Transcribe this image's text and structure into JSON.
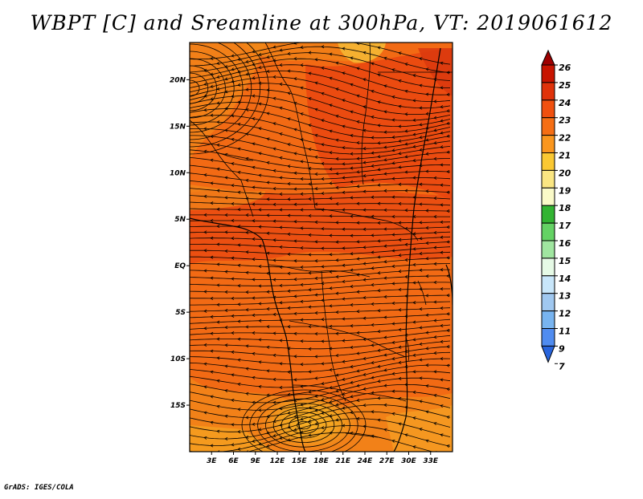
{
  "title": "WBPT [C] and Sreamline at 300hPa, VT: 2019061612",
  "credit": "GrADS: IGES/COLA",
  "map": {
    "lon_range": [
      0,
      36
    ],
    "lat_range": [
      -20,
      24
    ],
    "lat_ticks": [
      {
        "value": 20,
        "label": "20N"
      },
      {
        "value": 15,
        "label": "15N"
      },
      {
        "value": 10,
        "label": "10N"
      },
      {
        "value": 5,
        "label": "5N"
      },
      {
        "value": 0,
        "label": "EQ"
      },
      {
        "value": -5,
        "label": "5S"
      },
      {
        "value": -10,
        "label": "10S"
      },
      {
        "value": -15,
        "label": "15S"
      }
    ],
    "lon_ticks": [
      {
        "value": 3,
        "label": "3E"
      },
      {
        "value": 6,
        "label": "6E"
      },
      {
        "value": 9,
        "label": "9E"
      },
      {
        "value": 12,
        "label": "12E"
      },
      {
        "value": 15,
        "label": "15E"
      },
      {
        "value": 18,
        "label": "18E"
      },
      {
        "value": 21,
        "label": "21E"
      },
      {
        "value": 24,
        "label": "24E"
      },
      {
        "value": 27,
        "label": "27E"
      },
      {
        "value": 30,
        "label": "30E"
      },
      {
        "value": 33,
        "label": "33E"
      }
    ]
  },
  "colorbar": {
    "labels": [
      "26",
      "25",
      "24",
      "23",
      "22",
      "21",
      "20",
      "19",
      "18",
      "17",
      "16",
      "15",
      "14",
      "13",
      "12",
      "11",
      "9",
      "7"
    ],
    "colors": [
      "#9e0000",
      "#c81400",
      "#e0320a",
      "#f0500f",
      "#f56e14",
      "#fa961e",
      "#fac832",
      "#fae682",
      "#fafac8",
      "#32b432",
      "#64d264",
      "#a0e6a0",
      "#e6fae6",
      "#c8e6fa",
      "#a0c8f0",
      "#78b4f0",
      "#508cf0",
      "#2864dc"
    ]
  }
}
